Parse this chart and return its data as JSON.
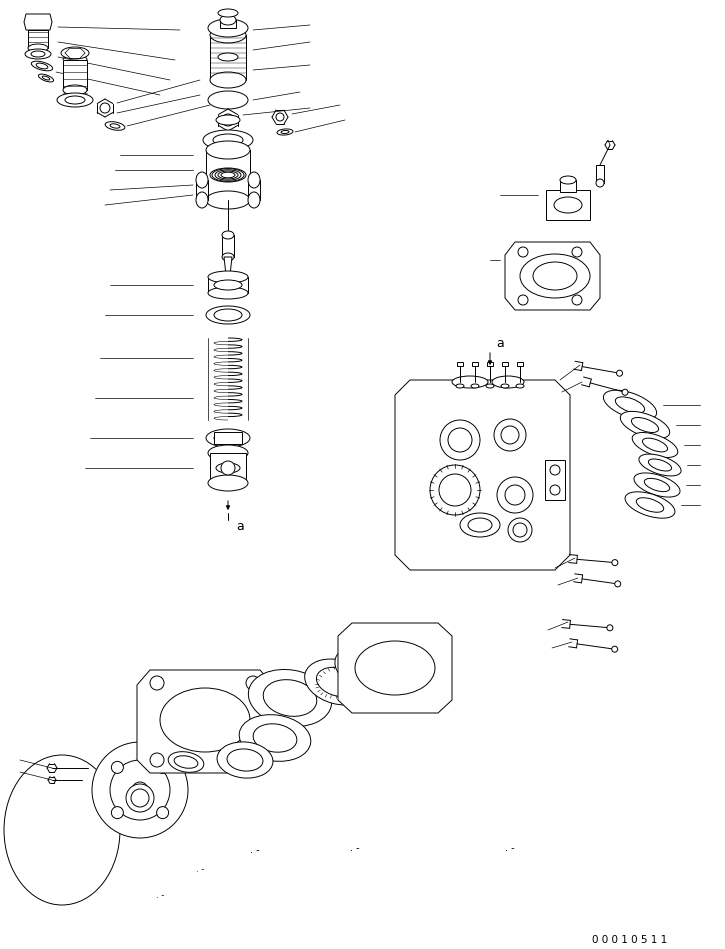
{
  "bg_color": "#ffffff",
  "line_color": "#000000",
  "page_id": "00010511",
  "fig_width": 7.25,
  "fig_height": 9.49,
  "dpi": 100,
  "lw": 0.7
}
